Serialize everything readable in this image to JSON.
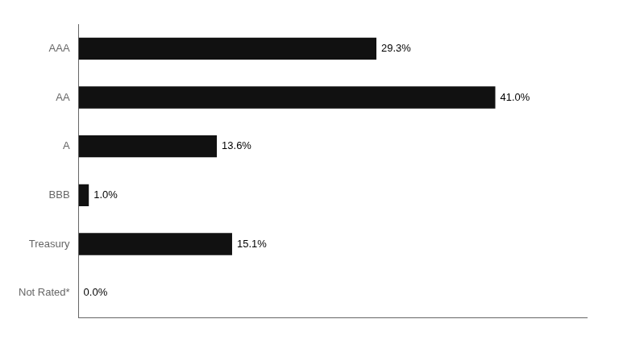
{
  "chart_data": {
    "type": "bar",
    "orientation": "horizontal",
    "categories": [
      "AAA",
      "AA",
      "A",
      "BBB",
      "Treasury",
      "Not Rated*"
    ],
    "values": [
      29.3,
      41.0,
      13.6,
      1.0,
      15.1,
      0.0
    ],
    "value_labels": [
      "29.3%",
      "41.0%",
      "13.6%",
      "1.0%",
      "15.1%",
      "0.0%"
    ],
    "color": "#111111",
    "xlim": [
      0,
      50
    ],
    "xticks": [],
    "grid": false,
    "data_labels": true,
    "tick_labels": "y"
  }
}
